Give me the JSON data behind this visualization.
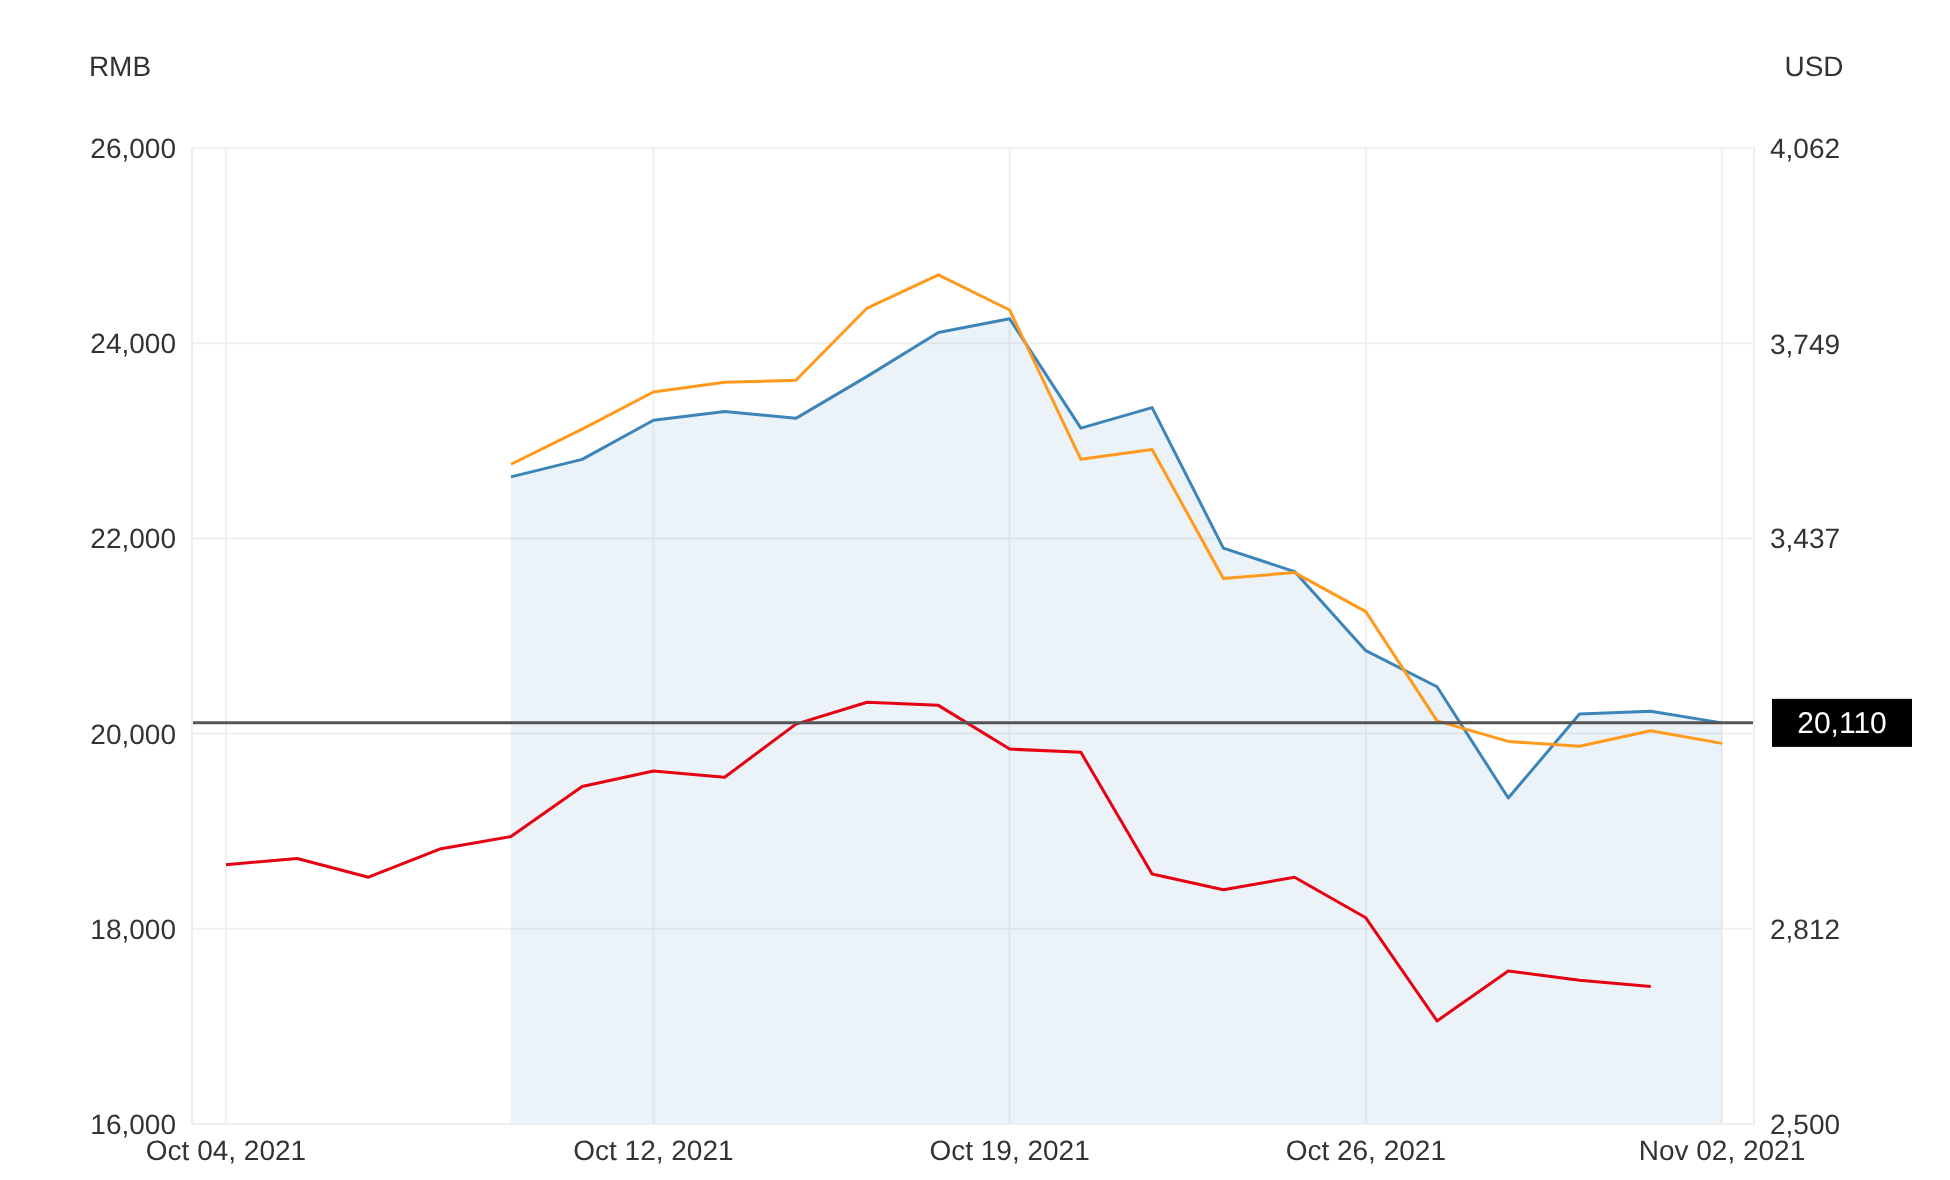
{
  "chart_data": {
    "type": "line",
    "ylabel": "RMB",
    "y2label": "USD",
    "categories": [
      "Oct 04, 2021",
      null,
      null,
      null,
      null,
      null,
      "Oct 12, 2021",
      null,
      null,
      null,
      null,
      "Oct 19, 2021",
      null,
      null,
      null,
      null,
      "Oct 26, 2021",
      null,
      null,
      null,
      null,
      "Nov 02, 2021"
    ],
    "series": [
      {
        "type": "area",
        "color": "#3d85b8",
        "values": [
          null,
          null,
          null,
          null,
          22630,
          22810,
          23210,
          23300,
          23230,
          23660,
          24110,
          24250,
          23130,
          23340,
          21900,
          21660,
          20850,
          20480,
          19340,
          20200,
          20230,
          20110
        ]
      },
      {
        "color": "#ff9a1c",
        "values": [
          null,
          null,
          null,
          null,
          22760,
          23120,
          23500,
          23600,
          23620,
          24360,
          24700,
          24340,
          22810,
          22910,
          21590,
          21650,
          21250,
          20130,
          19920,
          19870,
          20030,
          19900
        ]
      },
      {
        "color": "#e60012",
        "axis": "y2",
        "values": [
          2915,
          2925,
          2895,
          2940,
          2960,
          3040,
          3065,
          3055,
          3140,
          3175,
          3170,
          3100,
          3095,
          2900,
          2875,
          2895,
          2830,
          2665,
          2745,
          2730,
          2720,
          null
        ]
      }
    ],
    "ylim": [
      16000,
      26000
    ],
    "yticks": [
      {
        "value": 16000,
        "label": "16,000"
      },
      {
        "value": 18000,
        "label": "18,000"
      },
      {
        "value": 20000,
        "label": "20,000"
      },
      {
        "value": 22000,
        "label": "22,000"
      },
      {
        "value": 24000,
        "label": "24,000"
      },
      {
        "value": 26000,
        "label": "26,000"
      }
    ],
    "y2lim": [
      2500,
      4062
    ],
    "y2ticks": [
      {
        "value": 2500,
        "label": "2,500"
      },
      {
        "value": 2812,
        "label": "2,812"
      },
      {
        "value": 3437,
        "label": "3,437"
      },
      {
        "value": 3749,
        "label": "3,749"
      },
      {
        "value": 4062,
        "label": "4,062"
      }
    ],
    "ref_lines": [
      {
        "axis": "y",
        "value": 20110,
        "label": "20,110",
        "color": "#555555"
      }
    ],
    "grid": true
  }
}
